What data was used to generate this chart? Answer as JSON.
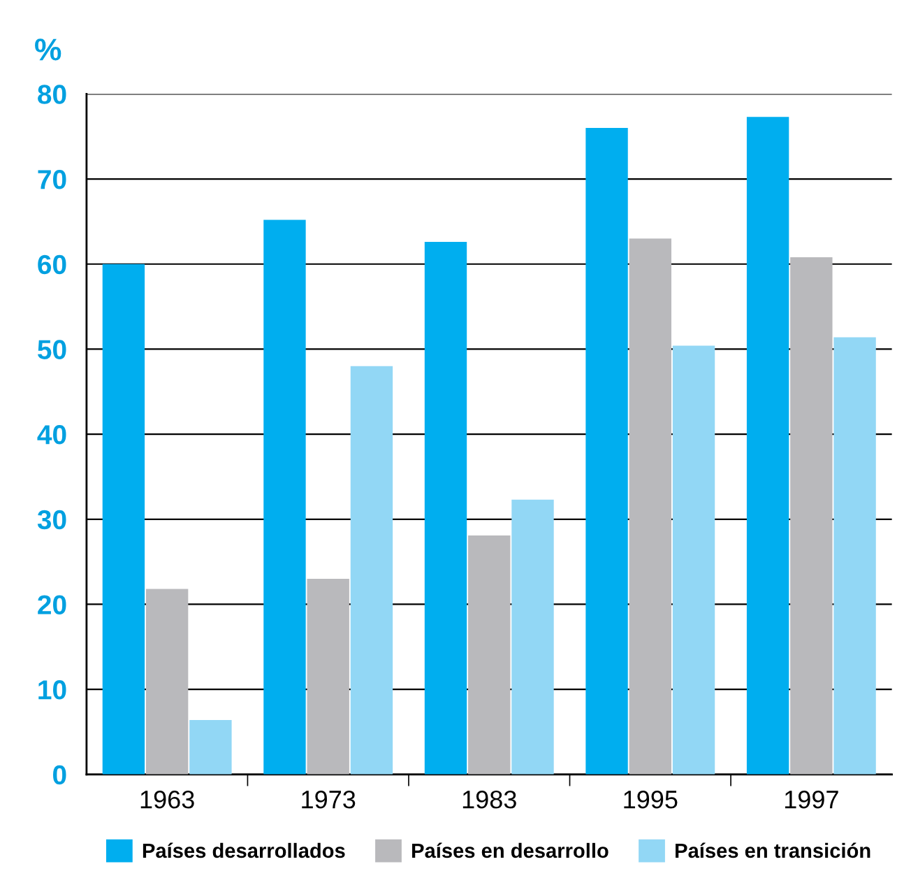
{
  "chart_data": {
    "type": "bar",
    "ylabel": "%",
    "categories": [
      "1963",
      "1973",
      "1983",
      "1995",
      "1997"
    ],
    "series": [
      {
        "name": "Países desarrollados",
        "color": "#00aeef",
        "values": [
          60,
          65.2,
          62.6,
          76,
          77.3
        ]
      },
      {
        "name": "Países en desarrollo",
        "color": "#b9b9bc",
        "values": [
          21.8,
          23,
          28.1,
          63,
          60.8
        ]
      },
      {
        "name": "Países en transición",
        "color": "#92d7f5",
        "values": [
          6.4,
          48,
          32.3,
          50.4,
          51.4
        ]
      }
    ],
    "ylim": [
      0,
      80
    ],
    "yticks": [
      0,
      10,
      20,
      30,
      40,
      50,
      60,
      70,
      80
    ],
    "grid": "y",
    "legend": "bottom"
  }
}
